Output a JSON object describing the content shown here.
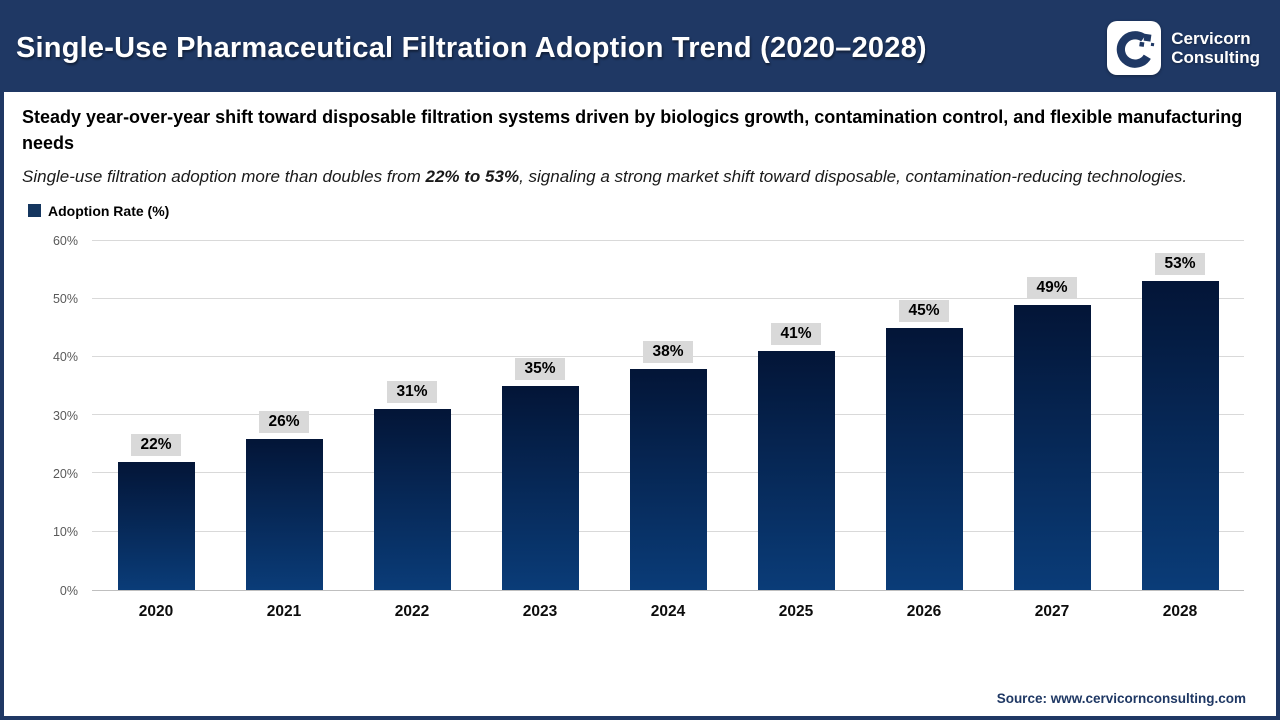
{
  "header": {
    "title": "Single-Use Pharmaceutical Filtration Adoption Trend (2020–2028)",
    "logo": {
      "icon": "cervicorn-c-mark",
      "brand_line1": "Cervicorn",
      "brand_line2": "Consulting"
    }
  },
  "subtitle": "Steady year-over-year shift toward disposable filtration systems driven by biologics growth, contamination control, and flexible manufacturing needs",
  "description": {
    "pre": "Single-use filtration adoption more than doubles from ",
    "bold": "22% to 53%",
    "post": ", signaling a strong market shift toward disposable, contamination-reducing technologies."
  },
  "legend": {
    "label": "Adoption Rate (%)",
    "swatch_color": "#15365F"
  },
  "chart_data": {
    "type": "bar",
    "title": "Single-Use Pharmaceutical Filtration Adoption Trend (2020–2028)",
    "categories": [
      "2020",
      "2021",
      "2022",
      "2023",
      "2024",
      "2025",
      "2026",
      "2027",
      "2028"
    ],
    "values": [
      22,
      26,
      31,
      35,
      38,
      41,
      45,
      49,
      53
    ],
    "value_labels": [
      "22%",
      "26%",
      "31%",
      "35%",
      "38%",
      "41%",
      "45%",
      "49%",
      "53%"
    ],
    "series_name": "Adoption Rate (%)",
    "xlabel": "",
    "ylabel": "",
    "ylim": [
      0,
      60
    ],
    "yticks": [
      0,
      10,
      20,
      30,
      40,
      50,
      60
    ],
    "ytick_labels": [
      "0%",
      "10%",
      "20%",
      "30%",
      "40%",
      "50%",
      "60%"
    ],
    "grid": "horizontal",
    "legend_position": "top-left",
    "bar_color_top": "#031537",
    "bar_color_bottom": "#0A3C78",
    "value_label_bg": "#d9d9d9"
  },
  "source": {
    "label": "Source: www.cervicornconsulting.com"
  },
  "colors": {
    "header_bg": "#1F3864",
    "page_border": "#1F3864",
    "gridline": "#d9d9d9",
    "axis_label": "#595959"
  }
}
